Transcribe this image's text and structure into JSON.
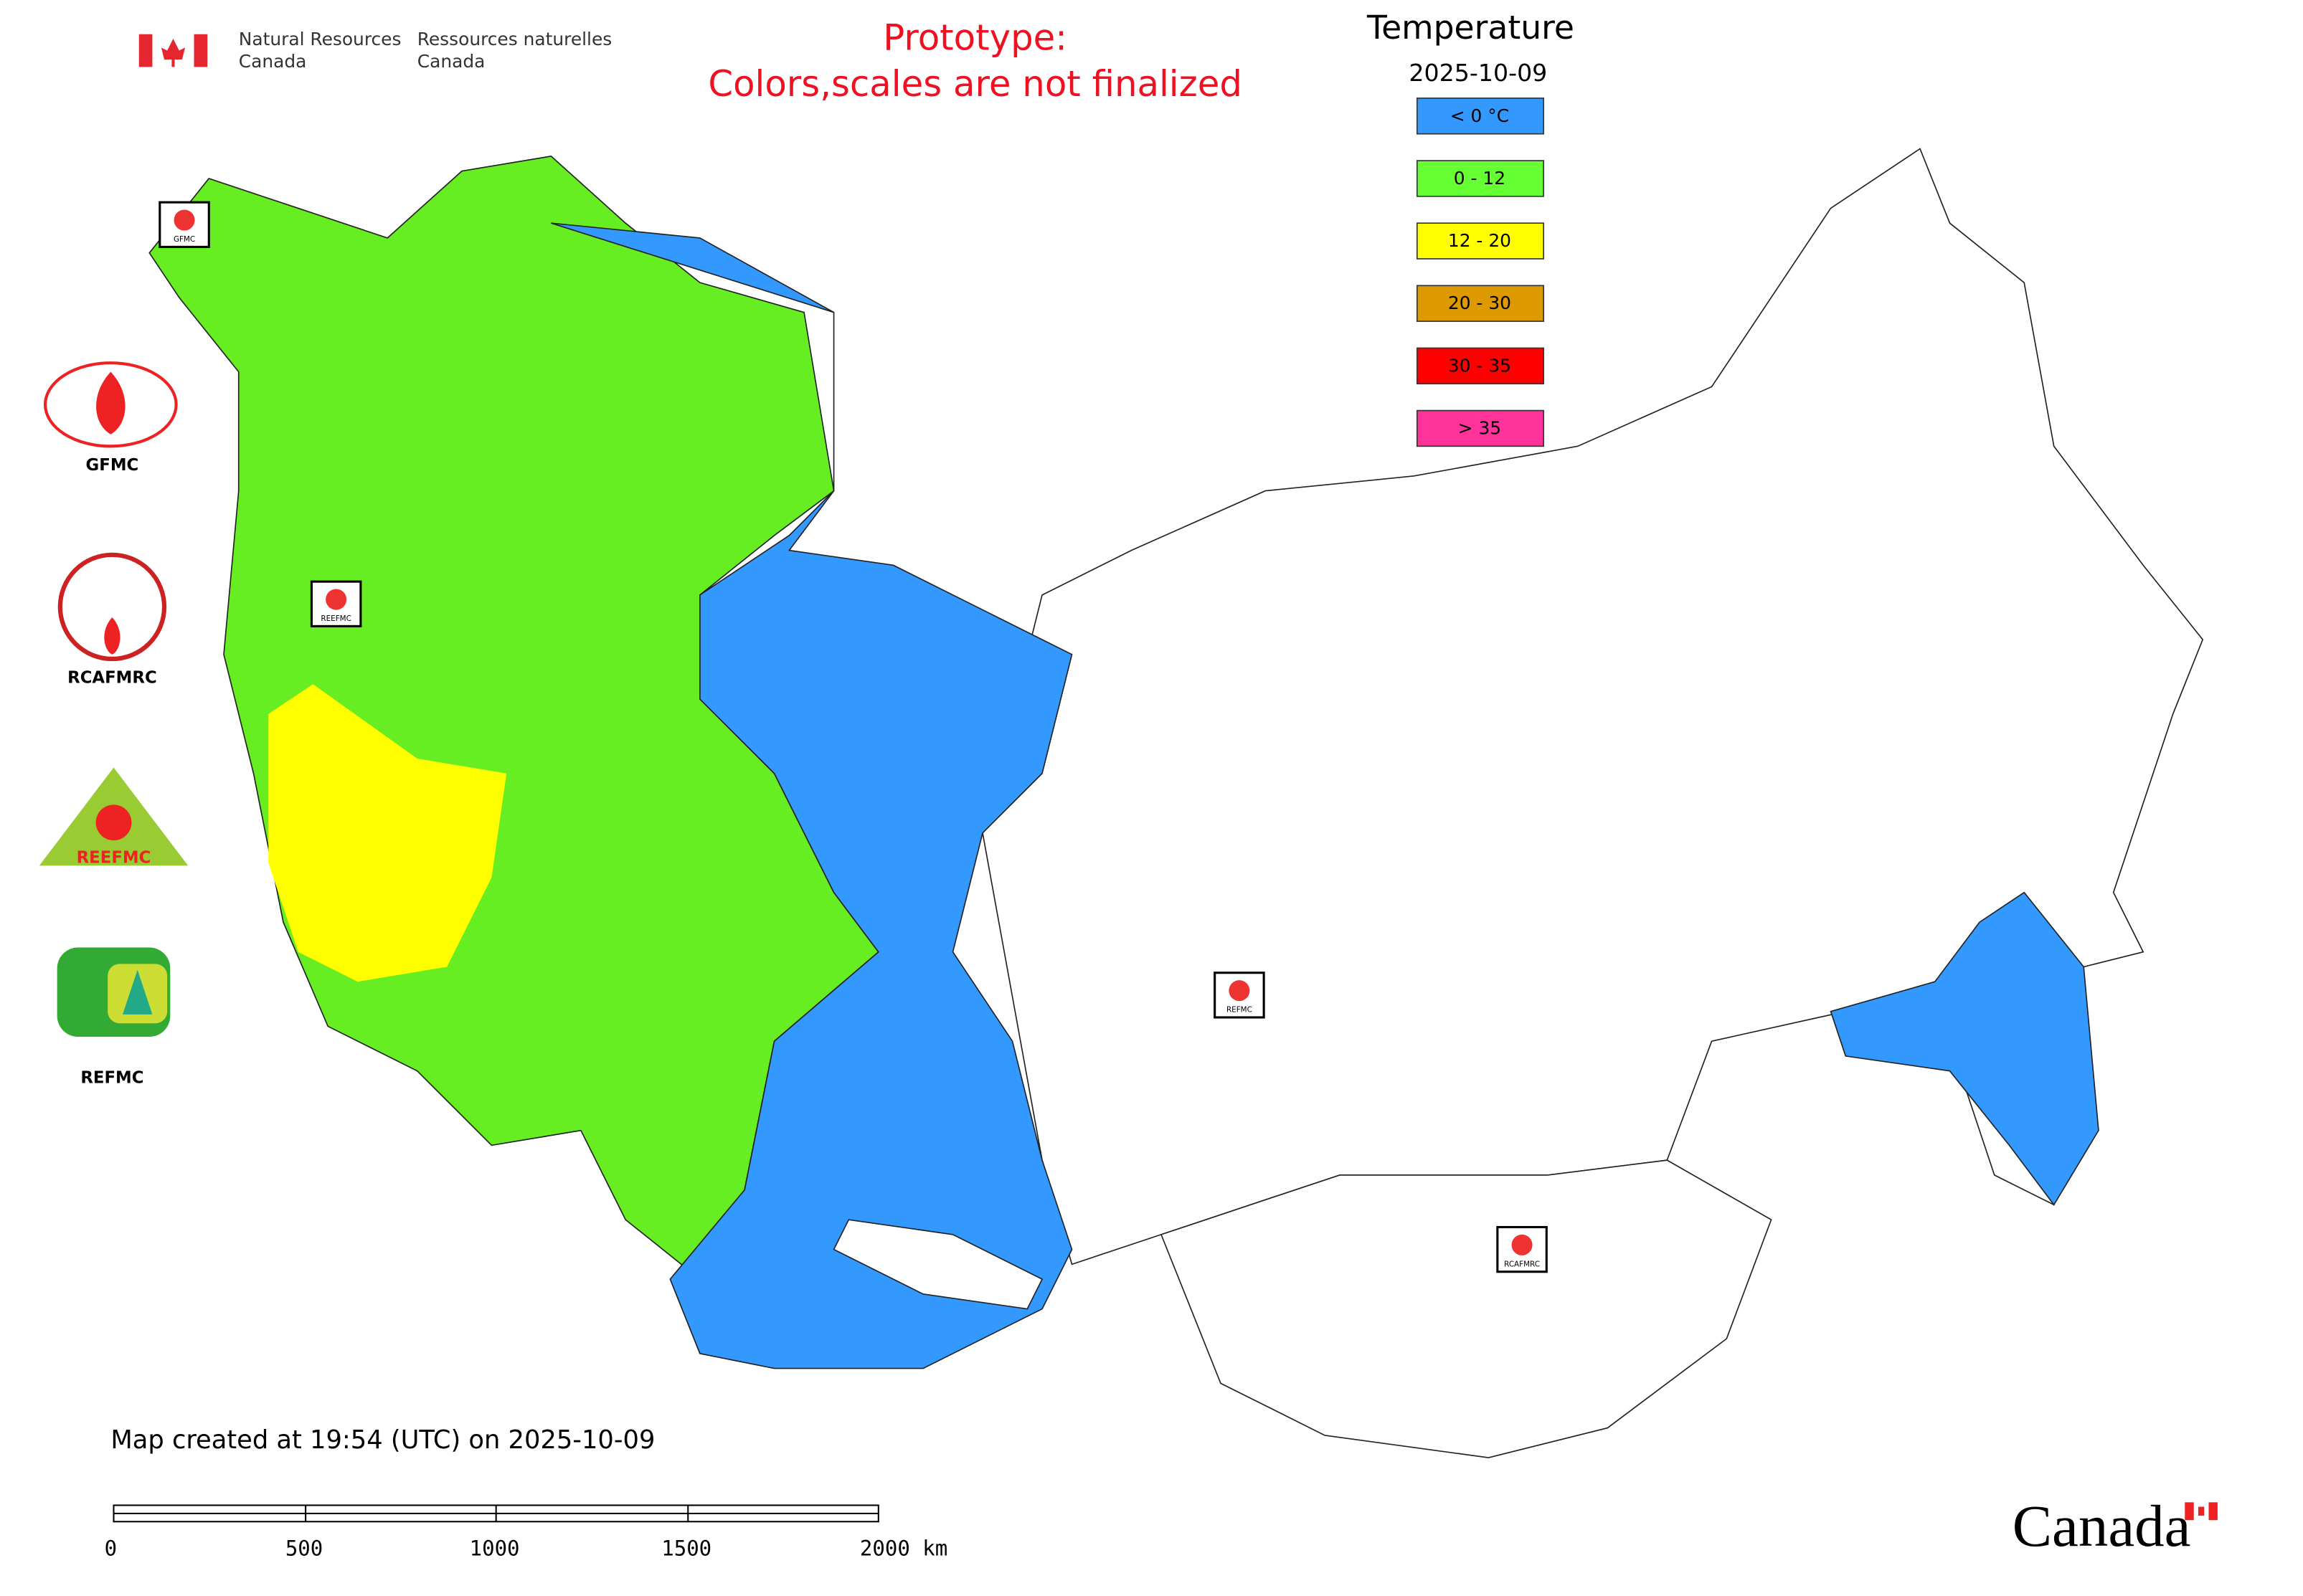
{
  "header": {
    "government_en": [
      "Natural Resources",
      "Canada"
    ],
    "government_fr": [
      "Ressources naturelles",
      "Canada"
    ],
    "notice": [
      "Prototype:",
      "Colors,scales are not finalized"
    ]
  },
  "legend": {
    "title": "Temperature",
    "date": "2025-10-09",
    "items": [
      {
        "label": "< 0 °C",
        "color": "#3399ff"
      },
      {
        "label": "0 - 12",
        "color": "#66ff33"
      },
      {
        "label": "12 - 20",
        "color": "#ffff00"
      },
      {
        "label": "20 - 30",
        "color": "#dd9900"
      },
      {
        "label": "30 - 35",
        "color": "#ff0000"
      },
      {
        "label": "> 35",
        "color": "#ff3399"
      }
    ]
  },
  "logos": [
    "GFMC",
    "RCAFMRC",
    "REEFMC",
    "REFMC"
  ],
  "map_markers": [
    "GFMC",
    "REEFMC",
    "REFMC",
    "RCAFMRC"
  ],
  "footer": {
    "created": "Map created at 19:54 (UTC) on 2025-10-09",
    "scale_labels": [
      "0",
      "500",
      "1000",
      "1500",
      "2000 km"
    ],
    "wordmark": "Canada"
  }
}
